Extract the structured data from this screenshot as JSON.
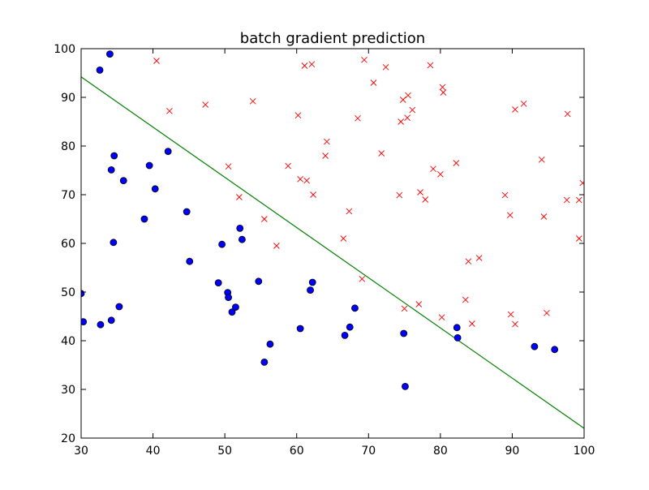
{
  "chart_data": {
    "type": "scatter",
    "title": "batch gradient prediction",
    "xlabel": "",
    "ylabel": "",
    "xlim": [
      30,
      100
    ],
    "ylim": [
      20,
      100
    ],
    "xticks": [
      30,
      40,
      50,
      60,
      70,
      80,
      90,
      100
    ],
    "yticks": [
      20,
      30,
      40,
      50,
      60,
      70,
      80,
      90,
      100
    ],
    "grid": false,
    "colors": {
      "positive": "#ff0000",
      "negative": "#0000ff",
      "boundary": "#008000"
    },
    "series": [
      {
        "marker": "o",
        "points": [
          [
            34.0,
            98.9
          ],
          [
            32.6,
            95.6
          ],
          [
            30.3,
            43.9
          ],
          [
            30.0,
            49.7
          ],
          [
            32.7,
            43.3
          ],
          [
            34.2,
            44.2
          ],
          [
            35.3,
            47.0
          ],
          [
            34.6,
            78.0
          ],
          [
            34.2,
            75.1
          ],
          [
            35.9,
            72.9
          ],
          [
            34.5,
            60.2
          ],
          [
            38.8,
            65.0
          ],
          [
            39.5,
            76.0
          ],
          [
            40.3,
            71.2
          ],
          [
            42.1,
            78.9
          ],
          [
            44.7,
            66.5
          ],
          [
            45.1,
            56.3
          ],
          [
            49.1,
            51.9
          ],
          [
            49.6,
            59.8
          ],
          [
            50.4,
            49.9
          ],
          [
            50.5,
            48.9
          ],
          [
            51.0,
            45.9
          ],
          [
            51.5,
            46.9
          ],
          [
            52.1,
            63.1
          ],
          [
            52.4,
            60.8
          ],
          [
            54.7,
            52.2
          ],
          [
            55.5,
            35.6
          ],
          [
            56.3,
            39.3
          ],
          [
            60.5,
            42.5
          ],
          [
            61.9,
            50.4
          ],
          [
            62.2,
            52.0
          ],
          [
            66.7,
            41.1
          ],
          [
            67.4,
            42.8
          ],
          [
            68.1,
            46.7
          ],
          [
            74.9,
            41.5
          ],
          [
            75.1,
            30.6
          ],
          [
            82.3,
            42.7
          ],
          [
            82.4,
            40.6
          ],
          [
            93.1,
            38.8
          ],
          [
            95.9,
            38.2
          ]
        ]
      },
      {
        "marker": "x",
        "points": [
          [
            40.5,
            97.5
          ],
          [
            42.3,
            87.2
          ],
          [
            47.3,
            88.5
          ],
          [
            50.5,
            75.8
          ],
          [
            52.0,
            69.5
          ],
          [
            53.9,
            89.2
          ],
          [
            55.5,
            65.0
          ],
          [
            57.2,
            59.5
          ],
          [
            58.8,
            75.9
          ],
          [
            60.2,
            86.3
          ],
          [
            60.5,
            73.2
          ],
          [
            61.1,
            96.5
          ],
          [
            61.4,
            72.9
          ],
          [
            62.1,
            96.8
          ],
          [
            62.3,
            70.0
          ],
          [
            64.0,
            78.0
          ],
          [
            64.2,
            80.9
          ],
          [
            66.5,
            61.0
          ],
          [
            67.3,
            66.6
          ],
          [
            68.5,
            85.7
          ],
          [
            69.1,
            52.7
          ],
          [
            69.4,
            97.7
          ],
          [
            70.7,
            93.0
          ],
          [
            71.8,
            78.5
          ],
          [
            72.4,
            96.2
          ],
          [
            74.3,
            69.9
          ],
          [
            74.5,
            85.0
          ],
          [
            74.8,
            89.5
          ],
          [
            75.0,
            46.6
          ],
          [
            75.4,
            85.8
          ],
          [
            75.5,
            90.4
          ],
          [
            76.1,
            87.4
          ],
          [
            77.0,
            47.5
          ],
          [
            77.2,
            70.5
          ],
          [
            77.9,
            69.0
          ],
          [
            78.6,
            96.6
          ],
          [
            79.0,
            75.3
          ],
          [
            80.0,
            74.2
          ],
          [
            80.2,
            44.8
          ],
          [
            80.3,
            92.1
          ],
          [
            80.4,
            91.0
          ],
          [
            82.2,
            76.5
          ],
          [
            83.5,
            48.4
          ],
          [
            83.9,
            56.3
          ],
          [
            84.4,
            43.5
          ],
          [
            85.4,
            57.0
          ],
          [
            89.0,
            69.9
          ],
          [
            89.7,
            65.8
          ],
          [
            89.8,
            45.4
          ],
          [
            90.4,
            87.5
          ],
          [
            90.4,
            43.4
          ],
          [
            91.6,
            88.7
          ],
          [
            94.1,
            77.2
          ],
          [
            94.4,
            65.5
          ],
          [
            94.8,
            45.7
          ],
          [
            97.6,
            68.9
          ],
          [
            97.7,
            86.6
          ],
          [
            99.3,
            68.9
          ],
          [
            99.3,
            61.0
          ],
          [
            99.8,
            72.4
          ]
        ]
      },
      {
        "type": "line",
        "x": [
          30,
          100
        ],
        "y": [
          94.2,
          22.0
        ]
      }
    ]
  }
}
